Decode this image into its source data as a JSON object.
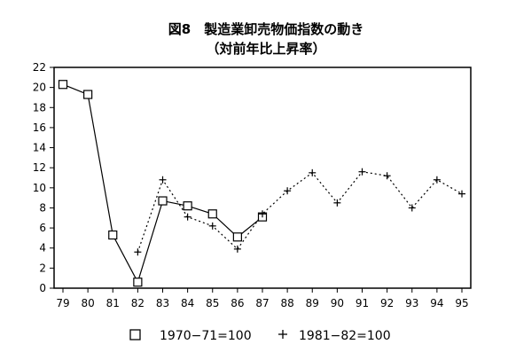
{
  "chart_data": {
    "type": "line",
    "title": "図8　製造業卸売物価指数の動き",
    "subtitle": "（対前年比上昇率）",
    "xlabel": "",
    "ylabel": "",
    "categories": [
      "79",
      "80",
      "81",
      "82",
      "83",
      "84",
      "85",
      "86",
      "87",
      "88",
      "89",
      "90",
      "91",
      "92",
      "93",
      "94",
      "95"
    ],
    "ylim": [
      0,
      22
    ],
    "yticks": [
      0,
      2,
      4,
      6,
      8,
      10,
      12,
      14,
      16,
      18,
      20,
      22
    ],
    "grid": false,
    "legend_position": "bottom",
    "series": [
      {
        "name": "1970−71=100",
        "marker": "square",
        "line": "solid",
        "values": [
          20.3,
          19.3,
          5.3,
          0.6,
          8.7,
          8.2,
          7.4,
          5.1,
          7.1,
          null,
          null,
          null,
          null,
          null,
          null,
          null,
          null
        ]
      },
      {
        "name": "1981−82=100",
        "marker": "plus",
        "line": "dotted",
        "values": [
          null,
          null,
          null,
          3.6,
          10.8,
          7.1,
          6.2,
          3.9,
          7.4,
          9.7,
          11.5,
          8.5,
          11.6,
          11.2,
          8.0,
          10.8,
          9.4
        ]
      }
    ]
  }
}
